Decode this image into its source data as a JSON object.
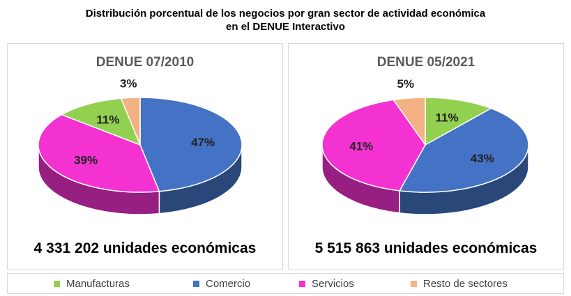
{
  "title": {
    "line1": "Distribución porcentual de los negocios por gran sector de actividad económica",
    "line2_prefix": "en el ",
    "line2_bold": "DENUE",
    "line2_suffix": " Interactivo"
  },
  "colors": {
    "Manufacturas": "#92d050",
    "Comercio": "#4472c4",
    "Servicios": "#f432d2",
    "Resto de sectores": "#f4b183"
  },
  "legend": [
    "Manufacturas",
    "Comercio",
    "Servicios",
    "Resto de sectores"
  ],
  "chart_data": [
    {
      "type": "pie",
      "title": "DENUE 07/2010",
      "caption": "4 331 202 unidades económicas",
      "slices": [
        {
          "name": "Comercio",
          "value": 47,
          "label": "47%"
        },
        {
          "name": "Servicios",
          "value": 39,
          "label": "39%"
        },
        {
          "name": "Manufacturas",
          "value": 11,
          "label": "11%"
        },
        {
          "name": "Resto de sectores",
          "value": 3,
          "label": "3%"
        }
      ]
    },
    {
      "type": "pie",
      "title": "DENUE 05/2021",
      "caption": "5 515 863 unidades económicas",
      "slices": [
        {
          "name": "Manufacturas",
          "value": 11,
          "label": "11%"
        },
        {
          "name": "Comercio",
          "value": 43,
          "label": "43%"
        },
        {
          "name": "Servicios",
          "value": 41,
          "label": "41%"
        },
        {
          "name": "Resto de sectores",
          "value": 5,
          "label": "5%"
        }
      ]
    }
  ]
}
